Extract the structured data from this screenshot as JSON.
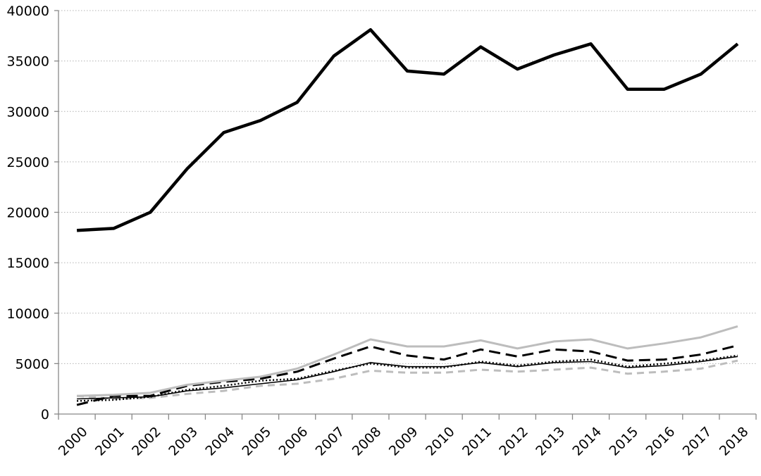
{
  "chart_data": {
    "type": "line",
    "title": "",
    "xlabel": "",
    "ylabel": "",
    "x": [
      "2000",
      "2001",
      "2002",
      "2003",
      "2004",
      "2005",
      "2006",
      "2007",
      "2008",
      "2009",
      "2010",
      "2011",
      "2012",
      "2013",
      "2014",
      "2015",
      "2016",
      "2017",
      "2018"
    ],
    "ylim": [
      0,
      40000
    ],
    "yticks": [
      "0",
      "5000",
      "10000",
      "15000",
      "20000",
      "25000",
      "30000",
      "35000",
      "40000"
    ],
    "ytick_values": [
      0,
      5000,
      10000,
      15000,
      20000,
      25000,
      30000,
      35000,
      40000
    ],
    "grid": true,
    "legend": "none",
    "series": [
      {
        "values": [
          18200,
          18400,
          20000,
          24300,
          27900,
          29100,
          30900,
          35500,
          38100,
          34000,
          33700,
          36400,
          34200,
          35600,
          36700,
          32200,
          32200,
          33700,
          36700
        ],
        "color": "#000000",
        "width": 4.5,
        "dash": ""
      },
      {
        "values": [
          1800,
          1900,
          2100,
          2900,
          3300,
          3700,
          4500,
          5900,
          7400,
          6700,
          6700,
          7300,
          6500,
          7200,
          7400,
          6500,
          7000,
          7600,
          8700
        ],
        "color": "#bdbdbd",
        "width": 3,
        "dash": ""
      },
      {
        "values": [
          900,
          1800,
          1800,
          2800,
          3200,
          3500,
          4200,
          5500,
          6700,
          5800,
          5400,
          6400,
          5700,
          6400,
          6200,
          5300,
          5400,
          5900,
          6800
        ],
        "color": "#000000",
        "width": 3,
        "dash": "16 8"
      },
      {
        "values": [
          1300,
          1400,
          1700,
          2400,
          2800,
          3300,
          3500,
          4300,
          5000,
          4600,
          4600,
          5200,
          4800,
          5200,
          5400,
          4700,
          5000,
          5300,
          5800
        ],
        "color": "#000000",
        "width": 2.5,
        "dash": "2 3"
      },
      {
        "values": [
          1500,
          1600,
          1700,
          2300,
          2600,
          3000,
          3400,
          4200,
          5100,
          4700,
          4700,
          5100,
          4700,
          5100,
          5200,
          4600,
          4800,
          5200,
          5700
        ],
        "color": "#000000",
        "width": 1.6,
        "dash": ""
      },
      {
        "values": [
          1800,
          1500,
          1600,
          2000,
          2300,
          2800,
          3000,
          3500,
          4300,
          4100,
          4100,
          4400,
          4200,
          4400,
          4600,
          4000,
          4200,
          4500,
          5300
        ],
        "color": "#bdbdbd",
        "width": 3,
        "dash": "10 7"
      }
    ]
  }
}
